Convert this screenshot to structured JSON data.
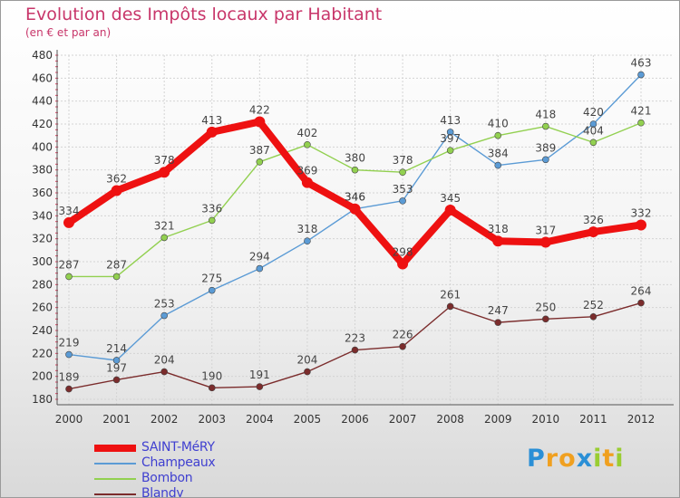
{
  "title": "Evolution des Impôts locaux par Habitant",
  "subtitle": "(en € et par an)",
  "logo": {
    "letters": [
      {
        "ch": "P",
        "color": "#2a8fd6"
      },
      {
        "ch": "r",
        "color": "#f0a020"
      },
      {
        "ch": "o",
        "color": "#f0a020"
      },
      {
        "ch": "x",
        "color": "#2a8fd6"
      },
      {
        "ch": "i",
        "color": "#9acd32"
      },
      {
        "ch": "t",
        "color": "#f0a020"
      },
      {
        "ch": "i",
        "color": "#9acd32"
      }
    ]
  },
  "chart_data": {
    "type": "line",
    "title": "Evolution des Impôts locaux par Habitant",
    "subtitle": "(en € et par an)",
    "xlabel": "",
    "ylabel": "",
    "ylim": [
      180,
      480
    ],
    "yticks": [
      180,
      200,
      220,
      240,
      260,
      280,
      300,
      320,
      340,
      360,
      380,
      400,
      420,
      440,
      460,
      480
    ],
    "grid": true,
    "legend_position": "bottom-left",
    "x": [
      "2000",
      "2001",
      "2002",
      "2003",
      "2004",
      "2005",
      "2006",
      "2007",
      "2008",
      "2009",
      "2010",
      "2011",
      "2012"
    ],
    "series": [
      {
        "name": "SAINT-MéRY",
        "color": "#ee1111",
        "bold": true,
        "values": [
          334,
          362,
          378,
          413,
          422,
          369,
          346,
          298,
          345,
          318,
          317,
          326,
          332
        ]
      },
      {
        "name": "Champeaux",
        "color": "#5b9bd5",
        "bold": false,
        "values": [
          219,
          214,
          253,
          275,
          294,
          318,
          346,
          353,
          413,
          384,
          389,
          420,
          463
        ]
      },
      {
        "name": "Bombon",
        "color": "#92d050",
        "bold": false,
        "values": [
          287,
          287,
          321,
          336,
          387,
          402,
          380,
          378,
          397,
          410,
          418,
          404,
          421
        ]
      },
      {
        "name": "Blandy",
        "color": "#7b2c2c",
        "bold": false,
        "values": [
          189,
          197,
          204,
          190,
          191,
          204,
          223,
          226,
          261,
          247,
          250,
          252,
          264
        ]
      }
    ]
  }
}
